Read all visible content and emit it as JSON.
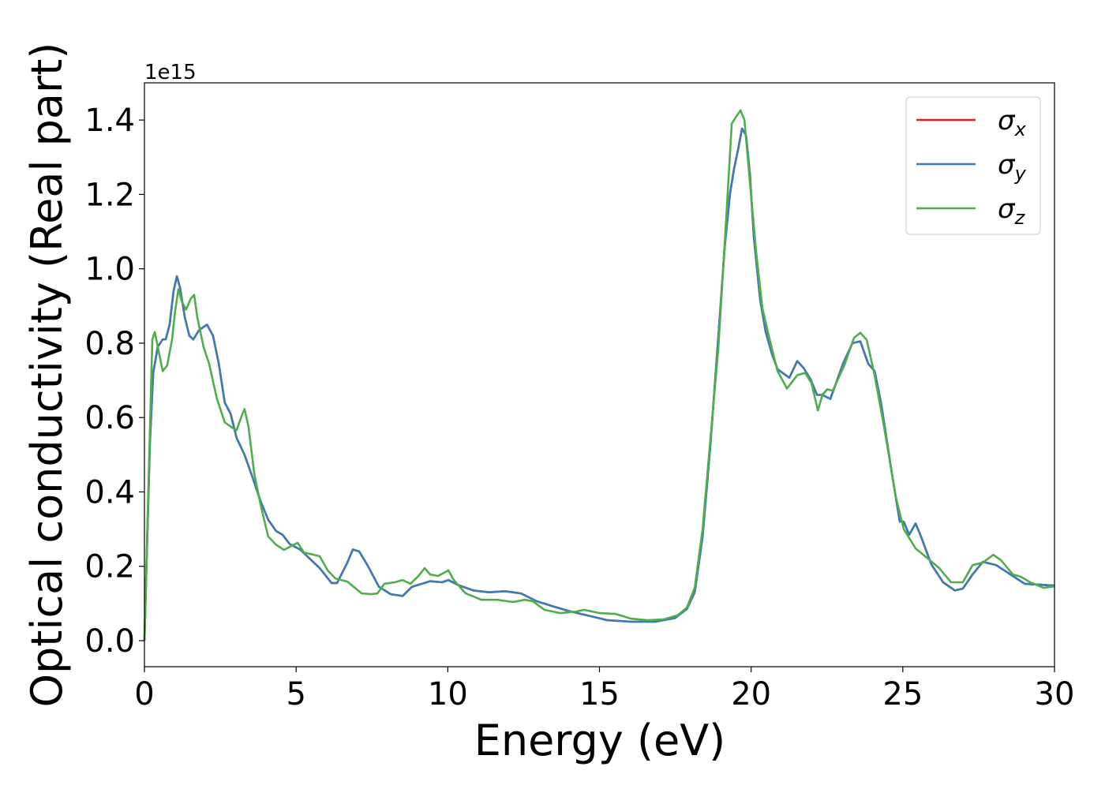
{
  "chart_data": {
    "type": "line",
    "title": "",
    "xlabel": "Energy (eV)",
    "ylabel": "Optical conductivity (Real part)",
    "y_offset_label": "1e15",
    "xlim": [
      0,
      30
    ],
    "ylim": [
      -0.07,
      1.5
    ],
    "xticks": [
      0,
      5,
      10,
      15,
      20,
      25,
      30
    ],
    "xtick_labels": [
      "0",
      "5",
      "10",
      "15",
      "20",
      "25",
      "30"
    ],
    "yticks": [
      0.0,
      0.2,
      0.4,
      0.6,
      0.8,
      1.0,
      1.2,
      1.4
    ],
    "ytick_labels": [
      "0.0",
      "0.2",
      "0.4",
      "0.6",
      "0.8",
      "1.0",
      "1.2",
      "1.4"
    ],
    "grid": false,
    "legend_position": "top-right",
    "series": [
      {
        "name": "σx",
        "base": "σ",
        "sub": "x",
        "color": "#e41a1c",
        "same_as": "σy"
      },
      {
        "name": "σy",
        "base": "σ",
        "sub": "y",
        "color": "#377eb8",
        "x": [
          0,
          0.08,
          0.18,
          0.29,
          0.44,
          0.6,
          0.7,
          0.83,
          0.96,
          1.07,
          1.17,
          1.33,
          1.48,
          1.61,
          1.8,
          2.06,
          2.26,
          2.45,
          2.65,
          2.84,
          3.04,
          3.3,
          3.56,
          3.83,
          4.08,
          4.34,
          4.55,
          4.79,
          5.13,
          5.52,
          5.78,
          6.17,
          6.35,
          6.69,
          6.87,
          7.08,
          7.34,
          7.73,
          8.12,
          8.51,
          8.82,
          9.42,
          9.81,
          10.02,
          10.33,
          10.85,
          11.37,
          11.89,
          12.41,
          12.93,
          13.45,
          13.97,
          14.49,
          15.27,
          16.06,
          16.84,
          17.49,
          17.88,
          18.14,
          18.4,
          18.66,
          18.92,
          19.13,
          19.31,
          19.44,
          19.57,
          19.7,
          19.83,
          19.96,
          20.09,
          20.3,
          20.48,
          20.69,
          20.87,
          21.26,
          21.52,
          21.73,
          21.96,
          22.17,
          22.35,
          22.61,
          23.03,
          23.34,
          23.6,
          23.86,
          24.07,
          24.28,
          24.64,
          24.9,
          25.03,
          25.21,
          25.42,
          25.6,
          25.94,
          26.33,
          26.72,
          26.98,
          27.3,
          27.64,
          28.08,
          28.55,
          29.02,
          30
        ],
        "y": [
          0,
          0.24,
          0.53,
          0.72,
          0.79,
          0.81,
          0.81,
          0.85,
          0.94,
          0.98,
          0.95,
          0.87,
          0.82,
          0.81,
          0.835,
          0.85,
          0.82,
          0.745,
          0.64,
          0.61,
          0.545,
          0.5,
          0.44,
          0.375,
          0.325,
          0.295,
          0.285,
          0.26,
          0.245,
          0.215,
          0.195,
          0.155,
          0.155,
          0.21,
          0.245,
          0.24,
          0.205,
          0.145,
          0.125,
          0.12,
          0.145,
          0.16,
          0.157,
          0.163,
          0.15,
          0.135,
          0.13,
          0.133,
          0.127,
          0.106,
          0.093,
          0.08,
          0.07,
          0.055,
          0.051,
          0.051,
          0.061,
          0.085,
          0.13,
          0.28,
          0.53,
          0.82,
          1.06,
          1.205,
          1.27,
          1.32,
          1.377,
          1.36,
          1.255,
          1.085,
          0.915,
          0.83,
          0.77,
          0.73,
          0.707,
          0.752,
          0.733,
          0.703,
          0.661,
          0.661,
          0.65,
          0.745,
          0.8,
          0.805,
          0.745,
          0.725,
          0.64,
          0.45,
          0.32,
          0.32,
          0.285,
          0.315,
          0.28,
          0.205,
          0.157,
          0.135,
          0.14,
          0.178,
          0.212,
          0.203,
          0.178,
          0.153,
          0.148
        ]
      },
      {
        "name": "σz",
        "base": "σ",
        "sub": "z",
        "color": "#4daf4a",
        "x": [
          0,
          0.13,
          0.26,
          0.34,
          0.44,
          0.6,
          0.75,
          0.91,
          1.01,
          1.12,
          1.22,
          1.37,
          1.53,
          1.64,
          1.74,
          1.95,
          2.13,
          2.39,
          2.65,
          2.91,
          3.04,
          3.23,
          3.3,
          3.43,
          3.62,
          3.83,
          4.08,
          4.34,
          4.6,
          4.92,
          5.05,
          5.26,
          5.59,
          5.78,
          6.04,
          6.3,
          6.69,
          7.16,
          7.47,
          7.68,
          7.91,
          8.25,
          8.51,
          8.77,
          9.03,
          9.24,
          9.42,
          9.68,
          10.02,
          10.2,
          10.59,
          11.11,
          11.63,
          12.15,
          12.54,
          12.8,
          13.19,
          13.71,
          14.23,
          14.49,
          15.01,
          15.53,
          16.06,
          16.58,
          17.1,
          17.57,
          17.88,
          18.14,
          18.4,
          18.66,
          18.92,
          19.18,
          19.36,
          19.49,
          19.65,
          19.78,
          19.96,
          20.17,
          20.37,
          20.61,
          20.87,
          21.18,
          21.52,
          21.78,
          21.99,
          22.2,
          22.35,
          22.51,
          22.69,
          23.08,
          23.39,
          23.6,
          23.81,
          24.07,
          24.38,
          24.77,
          25.03,
          25.42,
          25.81,
          26.2,
          26.59,
          26.98,
          27.3,
          27.64,
          27.98,
          28.24,
          28.63,
          28.89,
          29.2,
          29.64,
          30
        ],
        "y": [
          0,
          0.41,
          0.81,
          0.83,
          0.79,
          0.725,
          0.74,
          0.81,
          0.885,
          0.945,
          0.915,
          0.89,
          0.92,
          0.93,
          0.87,
          0.79,
          0.745,
          0.65,
          0.587,
          0.572,
          0.566,
          0.61,
          0.623,
          0.576,
          0.45,
          0.365,
          0.28,
          0.258,
          0.244,
          0.258,
          0.263,
          0.237,
          0.231,
          0.227,
          0.189,
          0.167,
          0.159,
          0.127,
          0.125,
          0.127,
          0.153,
          0.157,
          0.163,
          0.153,
          0.174,
          0.195,
          0.178,
          0.174,
          0.189,
          0.163,
          0.127,
          0.11,
          0.11,
          0.104,
          0.11,
          0.106,
          0.083,
          0.074,
          0.078,
          0.083,
          0.074,
          0.072,
          0.059,
          0.055,
          0.057,
          0.068,
          0.089,
          0.142,
          0.3,
          0.545,
          0.79,
          1.14,
          1.39,
          1.407,
          1.426,
          1.4,
          1.233,
          1.042,
          0.894,
          0.81,
          0.725,
          0.678,
          0.714,
          0.72,
          0.693,
          0.619,
          0.661,
          0.676,
          0.672,
          0.742,
          0.814,
          0.828,
          0.809,
          0.714,
          0.576,
          0.386,
          0.3,
          0.248,
          0.222,
          0.195,
          0.157,
          0.157,
          0.203,
          0.21,
          0.231,
          0.216,
          0.178,
          0.172,
          0.157,
          0.142,
          0.146
        ]
      }
    ]
  }
}
